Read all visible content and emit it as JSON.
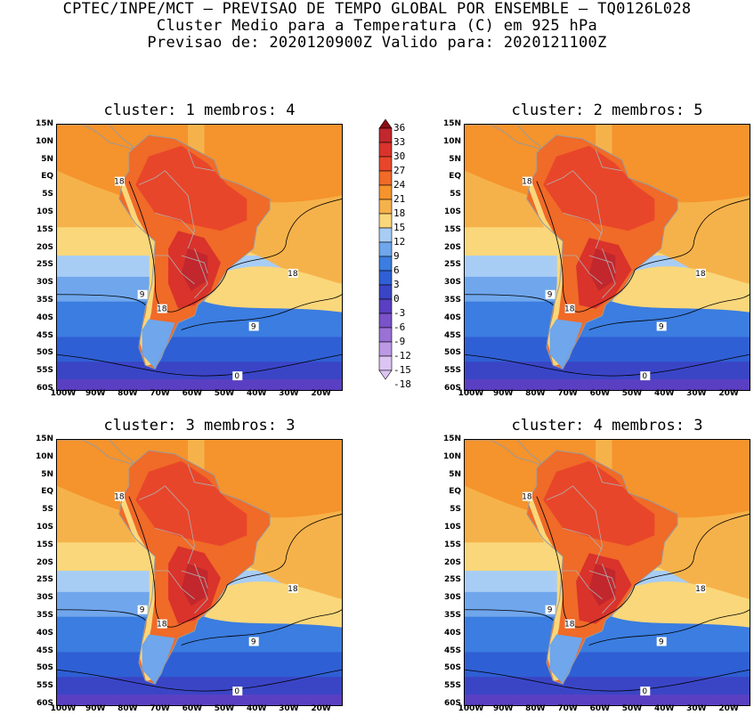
{
  "header": {
    "line1": "CPTEC/INPE/MCT – PREVISAO DE TEMPO GLOBAL POR ENSEMBLE – TQ0126L028",
    "line2": "Cluster Medio para a Temperatura (C) em 925 hPa",
    "line3": "Previsao de: 2020120900Z   Valido para: 2020121100Z"
  },
  "panels": [
    {
      "title": "cluster: 1   membros: 4",
      "contour_labels": [
        "18",
        "9",
        "18",
        "18",
        "9",
        "0"
      ]
    },
    {
      "title": "cluster: 2   membros: 5",
      "contour_labels": [
        "18",
        "9",
        "18",
        "18",
        "9",
        "0"
      ]
    },
    {
      "title": "cluster: 3   membros: 3",
      "contour_labels": [
        "18",
        "9",
        "18",
        "18",
        "9",
        "0"
      ]
    },
    {
      "title": "cluster: 4   membros: 3",
      "contour_labels": [
        "18",
        "9",
        "18",
        "18",
        "9",
        "0"
      ]
    }
  ],
  "axes": {
    "lat_labels": [
      "15N",
      "10N",
      "5N",
      "EQ",
      "5S",
      "10S",
      "15S",
      "20S",
      "25S",
      "30S",
      "35S",
      "40S",
      "45S",
      "50S",
      "55S",
      "60S"
    ],
    "lon_labels": [
      "100W",
      "90W",
      "80W",
      "70W",
      "60W",
      "50W",
      "40W",
      "30W",
      "20W"
    ]
  },
  "colorbar": {
    "labels": [
      "36",
      "33",
      "30",
      "27",
      "24",
      "21",
      "18",
      "15",
      "12",
      "9",
      "6",
      "3",
      "0",
      "-3",
      "-6",
      "-9",
      "-12",
      "-15",
      "-18"
    ],
    "colors": [
      "#a0151b",
      "#c1272d",
      "#d9332b",
      "#e8462a",
      "#f06a28",
      "#f5932c",
      "#f6b24a",
      "#fad77a",
      "#a8cdf5",
      "#6fa6ec",
      "#3b7de0",
      "#2f5fd4",
      "#3a45c6",
      "#5a3fc2",
      "#7a52c9",
      "#9a72d6",
      "#bb99e4",
      "#dcc5f2"
    ]
  }
}
